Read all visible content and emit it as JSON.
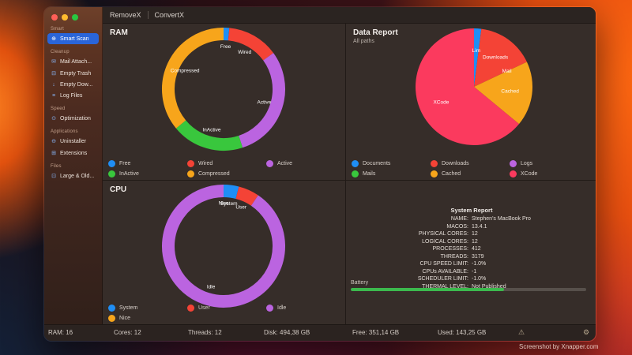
{
  "window": {
    "tabs": [
      {
        "label": "RemoveX"
      },
      {
        "label": "ConvertX"
      }
    ]
  },
  "sidebar": {
    "sections": [
      {
        "header": "Smart",
        "items": [
          {
            "label": "Smart Scan",
            "icon": "smart-scan-icon",
            "selected": true
          }
        ]
      },
      {
        "header": "Cleanup",
        "items": [
          {
            "label": "Mail Attach...",
            "icon": "mail-icon"
          },
          {
            "label": "Empty Trash",
            "icon": "trash-icon"
          },
          {
            "label": "Empty Dow...",
            "icon": "download-icon"
          },
          {
            "label": "Log Files",
            "icon": "log-file-icon"
          }
        ]
      },
      {
        "header": "Speed",
        "items": [
          {
            "label": "Optimization",
            "icon": "optimization-icon"
          }
        ]
      },
      {
        "header": "Applications",
        "items": [
          {
            "label": "Uninstaller",
            "icon": "uninstaller-icon"
          },
          {
            "label": "Extensions",
            "icon": "extensions-icon"
          }
        ]
      },
      {
        "header": "Files",
        "items": [
          {
            "label": "Large & Old...",
            "icon": "large-old-files-icon"
          }
        ]
      }
    ]
  },
  "chart_data": [
    {
      "id": "ram",
      "type": "donut",
      "title": "RAM",
      "categories": [
        "Free",
        "Wired",
        "Active",
        "InActive",
        "Compressed"
      ],
      "values": [
        1.5,
        13.5,
        30,
        19,
        36
      ],
      "colors": [
        "#1f8ef5",
        "#f44336",
        "#bb64e0",
        "#39c73d",
        "#f7a51b"
      ],
      "slice_labels": [
        "Free",
        "Wired",
        "Active",
        "InActive",
        "Compressed"
      ],
      "legend_position": "bottom"
    },
    {
      "id": "data-report",
      "type": "pie",
      "title": "Data Report",
      "subtitle": "All paths",
      "categories": [
        "Documents",
        "Downloads",
        "Logs",
        "Mails",
        "Cached",
        "XCode"
      ],
      "values": [
        2,
        16,
        0,
        0,
        18,
        64
      ],
      "colors": [
        "#1f8ef5",
        "#f44336",
        "#bb64e0",
        "#39c73d",
        "#f7a51b",
        "#fb3a5e"
      ],
      "slice_labels": [
        "Lim",
        "Downloads",
        "",
        "Mail",
        "Cached",
        "XCode"
      ],
      "legend_position": "bottom"
    },
    {
      "id": "cpu",
      "type": "donut",
      "title": "CPU",
      "categories": [
        "System",
        "User",
        "Idle",
        "Nice"
      ],
      "values": [
        4,
        5.5,
        90.5,
        0
      ],
      "colors": [
        "#1f8ef5",
        "#f44336",
        "#bb64e0",
        "#f7a51b"
      ],
      "slice_labels": [
        "System",
        "User",
        "Idle",
        "Nice"
      ],
      "legend_position": "bottom"
    }
  ],
  "system_report": {
    "title": "System Report",
    "rows": [
      {
        "label": "NAME:",
        "value": "Stephen's MacBook Pro"
      },
      {
        "label": "MACOS:",
        "value": "13.4.1"
      },
      {
        "label": "PHYSICAL CORES:",
        "value": "12"
      },
      {
        "label": "LOGICAL CORES:",
        "value": "12"
      },
      {
        "label": "PROCESSES:",
        "value": "412"
      },
      {
        "label": "THREADS:",
        "value": "3179"
      },
      {
        "label": "CPU SPEED LIMIT:",
        "value": "-1.0%"
      },
      {
        "label": "CPUs AVAILABLE:",
        "value": "-1"
      },
      {
        "label": "SCHEDULER LIMIT:",
        "value": "-1.0%"
      },
      {
        "label": "THERMAL LEVEL:",
        "value": "Not Published"
      }
    ]
  },
  "battery": {
    "label": "Battery",
    "percent": 65,
    "color": "#3cb94d"
  },
  "status_bar": {
    "items": [
      {
        "label": "RAM:",
        "value": "16"
      },
      {
        "label": "Cores:",
        "value": "12"
      },
      {
        "label": "Threads:",
        "value": "12"
      },
      {
        "label": "Disk:",
        "value": "494,38 GB"
      },
      {
        "label": "Free:",
        "value": "351,14 GB"
      },
      {
        "label": "Used:",
        "value": "143,25 GB"
      }
    ],
    "icons": [
      "alert-icon",
      "settings-icon"
    ]
  },
  "watermark": "Screenshot by Xnapper.com",
  "colors": {
    "accent": "#2a65d9",
    "battery_green": "#3cb94d",
    "window_bg": "#362d29"
  }
}
